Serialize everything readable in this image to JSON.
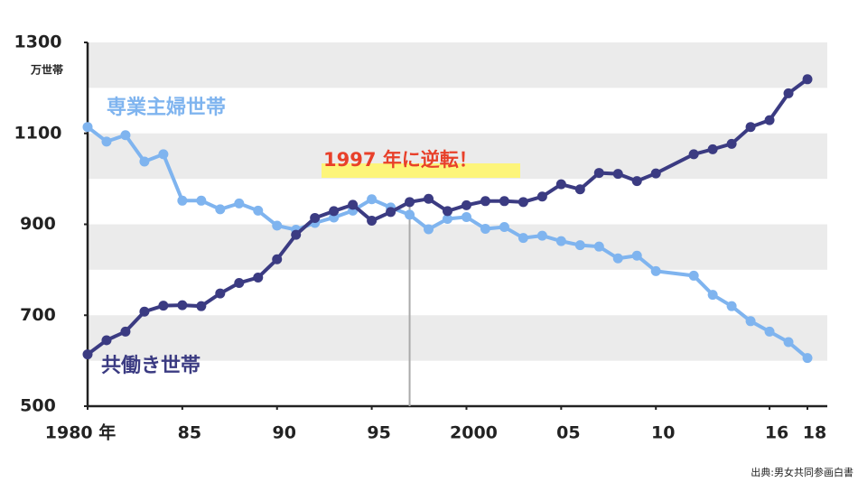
{
  "chart_data": {
    "type": "line",
    "y_unit": "万世帯",
    "annotation": {
      "text": "1997 年に逆転！",
      "x": 1997
    },
    "source": "出典:男女共同参画白書",
    "x": [
      1980,
      1981,
      1982,
      1983,
      1984,
      1985,
      1986,
      1987,
      1988,
      1989,
      1990,
      1991,
      1992,
      1993,
      1994,
      1995,
      1996,
      1997,
      1998,
      1999,
      2000,
      2001,
      2002,
      2003,
      2004,
      2005,
      2006,
      2007,
      2008,
      2009,
      2010,
      2012,
      2013,
      2014,
      2015,
      2016,
      2017,
      2018
    ],
    "series": [
      {
        "name": "専業主婦世帯",
        "color": "#7fb4ef",
        "values": [
          1114,
          1082,
          1096,
          1038,
          1054,
          952,
          952,
          933,
          946,
          930,
          897,
          888,
          903,
          915,
          930,
          955,
          937,
          921,
          889,
          912,
          916,
          890,
          894,
          870,
          875,
          863,
          854,
          851,
          825,
          831,
          797,
          787,
          745,
          720,
          687,
          664,
          641,
          606
        ]
      },
      {
        "name": "共働き世帯",
        "color": "#3b3b82",
        "values": [
          614,
          645,
          664,
          708,
          721,
          722,
          720,
          748,
          771,
          783,
          823,
          877,
          914,
          929,
          943,
          908,
          927,
          949,
          956,
          929,
          942,
          951,
          951,
          949,
          961,
          988,
          977,
          1013,
          1011,
          995,
          1012,
          1054,
          1065,
          1077,
          1114,
          1129,
          1188,
          1219
        ]
      }
    ],
    "xlim": [
      1980,
      2018
    ],
    "xticks": [
      {
        "value": 1980,
        "label": "1980 年"
      },
      {
        "value": 1985,
        "label": "85"
      },
      {
        "value": 1990,
        "label": "90"
      },
      {
        "value": 1995,
        "label": "95"
      },
      2000,
      {
        "value": 2005,
        "label": "05"
      },
      {
        "value": 2010,
        "label": "10"
      },
      {
        "value": 2016,
        "label": "16"
      },
      {
        "value": 2018,
        "label": "18"
      }
    ],
    "ylim": [
      500,
      1300
    ],
    "yticks": [
      500,
      700,
      900,
      1100,
      1300
    ]
  }
}
